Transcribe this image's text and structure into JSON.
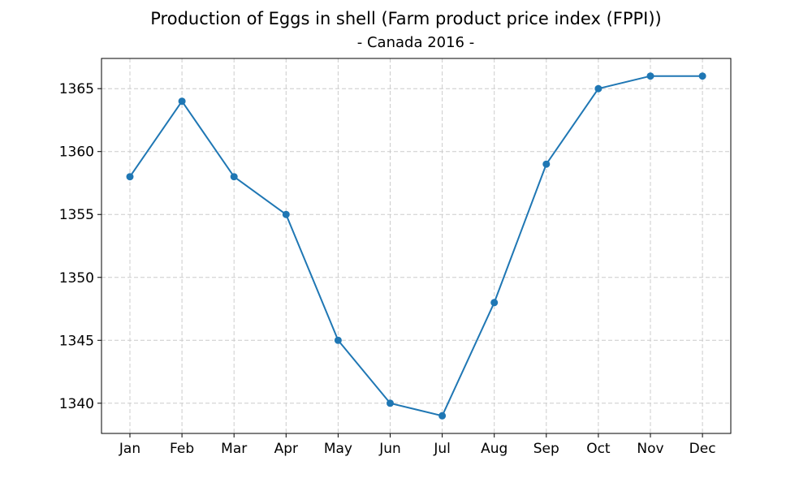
{
  "chart_data": {
    "type": "line",
    "title": "Production of Eggs in shell (Farm product price index (FPPI))",
    "subtitle": "- Canada 2016 -",
    "xlabel": "",
    "ylabel": "",
    "categories": [
      "Jan",
      "Feb",
      "Mar",
      "Apr",
      "May",
      "Jun",
      "Jul",
      "Aug",
      "Sep",
      "Oct",
      "Nov",
      "Dec"
    ],
    "series": [
      {
        "values": [
          1358,
          1364,
          1358,
          1355,
          1345,
          1340,
          1339,
          1348,
          1359,
          1365,
          1366,
          1366
        ],
        "color": "#1f77b4",
        "marker": "circle"
      }
    ],
    "yticks": [
      1340,
      1345,
      1350,
      1355,
      1360,
      1365
    ],
    "ylim": [
      1337.6,
      1367.4
    ],
    "grid": true,
    "legend": "none"
  }
}
